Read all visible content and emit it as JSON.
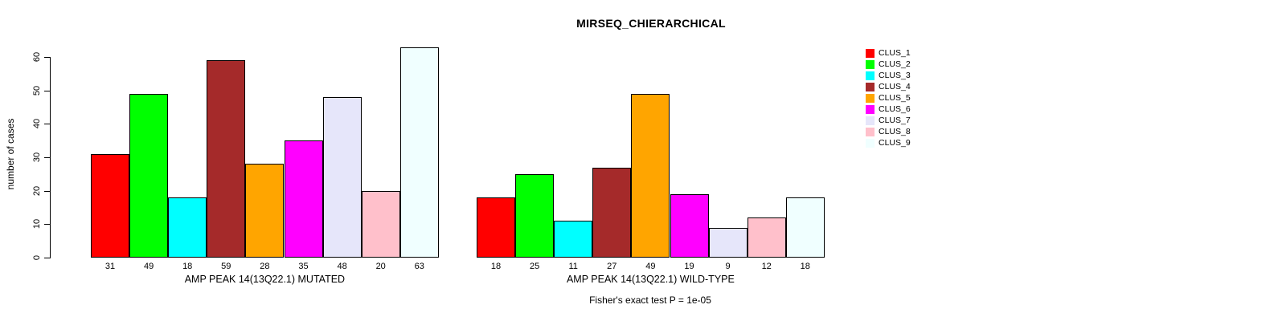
{
  "title": "MIRSEQ_CHIERARCHICAL",
  "chart_data": {
    "type": "bar",
    "title": "MIRSEQ_CHIERARCHICAL",
    "ylabel": "number of cases",
    "ylim": [
      0,
      63
    ],
    "yticks": [
      0,
      10,
      20,
      30,
      40,
      50,
      60
    ],
    "grid": false,
    "background": "#ffffff",
    "bar_border_color": "#000000",
    "categories": [
      "CLUS_1",
      "CLUS_2",
      "CLUS_3",
      "CLUS_4",
      "CLUS_5",
      "CLUS_6",
      "CLUS_7",
      "CLUS_8",
      "CLUS_9"
    ],
    "series_colors": [
      "#FF0000",
      "#00FF00",
      "#00FFFF",
      "#A52A2A",
      "#FFA500",
      "#FF00FF",
      "#E6E6FA",
      "#FFC0CB",
      "#F0FFFF"
    ],
    "panels": [
      {
        "xlabel": "AMP PEAK 14(13Q22.1) MUTATED",
        "values": [
          31,
          49,
          18,
          59,
          28,
          35,
          48,
          20,
          63
        ],
        "bar_labels": [
          "31",
          "49",
          "18",
          "59",
          "28",
          "35",
          "48",
          "20",
          "63"
        ]
      },
      {
        "xlabel": "AMP PEAK 14(13Q22.1) WILD-TYPE",
        "values": [
          18,
          25,
          11,
          27,
          49,
          19,
          9,
          12,
          18
        ],
        "bar_labels": [
          "18",
          "25",
          "11",
          "27",
          "49",
          "19",
          "9",
          "12",
          "18"
        ]
      }
    ],
    "legend": {
      "position": "right",
      "entries": [
        {
          "label": "CLUS_1",
          "color": "#FF0000"
        },
        {
          "label": "CLUS_2",
          "color": "#00FF00"
        },
        {
          "label": "CLUS_3",
          "color": "#00FFFF"
        },
        {
          "label": "CLUS_4",
          "color": "#A52A2A"
        },
        {
          "label": "CLUS_5",
          "color": "#FFA500"
        },
        {
          "label": "CLUS_6",
          "color": "#FF00FF"
        },
        {
          "label": "CLUS_7",
          "color": "#E6E6FA"
        },
        {
          "label": "CLUS_8",
          "color": "#FFC0CB"
        },
        {
          "label": "CLUS_9",
          "color": "#F0FFFF"
        }
      ]
    },
    "annotation": "Fisher's exact test P = 1e-05"
  }
}
